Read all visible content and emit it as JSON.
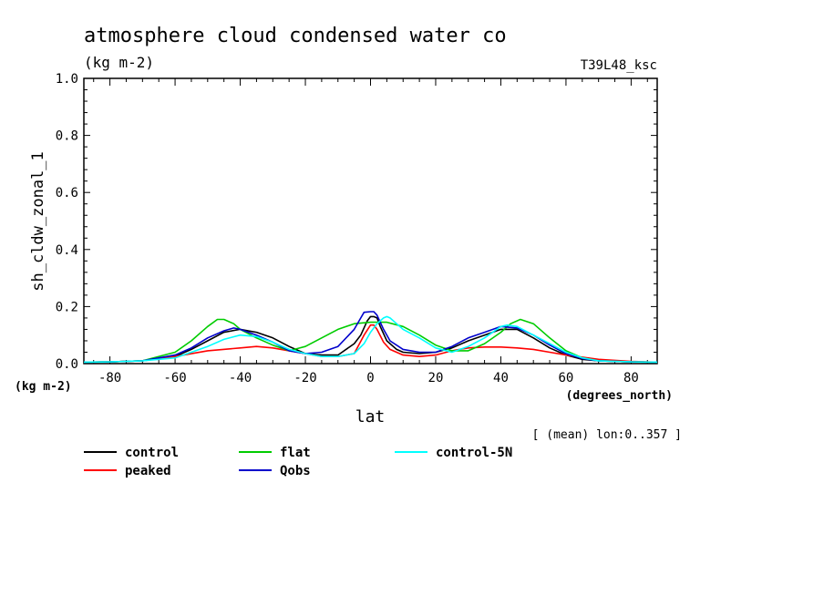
{
  "chart_data": {
    "type": "line",
    "title": "atmosphere cloud condensed water co",
    "subtitle": "(kg m-2)",
    "run_label": "T39L48_ksc",
    "ylabel": "sh_cldw_zonal_1",
    "yunits": "(kg m-2)",
    "xlabel": "lat",
    "xunits": "(degrees_north)",
    "note": "[ (mean) lon:0..357 ]",
    "xlim": [
      -88,
      88
    ],
    "ylim": [
      0,
      1
    ],
    "xticks": [
      -80,
      -60,
      -40,
      -20,
      0,
      20,
      40,
      60,
      80
    ],
    "yticks": [
      "0.0",
      "0.2",
      "0.4",
      "0.6",
      "0.8",
      "1.0"
    ],
    "legend_position": "bottom",
    "series": [
      {
        "name": "control",
        "color": "#000000",
        "x": [
          -88,
          -80,
          -70,
          -60,
          -55,
          -50,
          -45,
          -40,
          -35,
          -30,
          -25,
          -20,
          -15,
          -10,
          -5,
          -3,
          -1,
          0,
          1,
          2,
          3,
          5,
          8,
          10,
          15,
          20,
          25,
          30,
          35,
          40,
          45,
          50,
          55,
          60,
          65,
          70,
          80,
          88
        ],
        "y": [
          0.005,
          0.006,
          0.01,
          0.025,
          0.05,
          0.08,
          0.11,
          0.12,
          0.11,
          0.09,
          0.06,
          0.035,
          0.03,
          0.03,
          0.07,
          0.1,
          0.15,
          0.165,
          0.165,
          0.16,
          0.13,
          0.08,
          0.05,
          0.04,
          0.035,
          0.04,
          0.055,
          0.08,
          0.1,
          0.12,
          0.12,
          0.09,
          0.055,
          0.03,
          0.015,
          0.01,
          0.006,
          0.005
        ]
      },
      {
        "name": "peaked",
        "color": "#ff0000",
        "x": [
          -88,
          -80,
          -70,
          -60,
          -50,
          -40,
          -35,
          -30,
          -25,
          -20,
          -15,
          -10,
          -5,
          -2,
          0,
          1,
          2,
          4,
          6,
          10,
          15,
          20,
          25,
          30,
          35,
          40,
          45,
          50,
          55,
          60,
          70,
          80,
          88
        ],
        "y": [
          0.005,
          0.006,
          0.01,
          0.025,
          0.045,
          0.055,
          0.06,
          0.055,
          0.045,
          0.035,
          0.025,
          0.025,
          0.035,
          0.1,
          0.135,
          0.135,
          0.12,
          0.075,
          0.05,
          0.03,
          0.025,
          0.03,
          0.045,
          0.055,
          0.058,
          0.058,
          0.055,
          0.05,
          0.04,
          0.03,
          0.015,
          0.008,
          0.005
        ]
      },
      {
        "name": "flat",
        "color": "#00cc00",
        "x": [
          -88,
          -80,
          -70,
          -60,
          -55,
          -50,
          -47,
          -45,
          -42,
          -40,
          -35,
          -30,
          -25,
          -20,
          -15,
          -10,
          -5,
          0,
          3,
          5,
          10,
          15,
          20,
          25,
          30,
          35,
          40,
          43,
          46,
          50,
          55,
          60,
          65,
          70,
          80,
          88
        ],
        "y": [
          0.005,
          0.006,
          0.01,
          0.04,
          0.08,
          0.13,
          0.155,
          0.155,
          0.14,
          0.12,
          0.09,
          0.065,
          0.045,
          0.06,
          0.09,
          0.12,
          0.14,
          0.145,
          0.145,
          0.145,
          0.13,
          0.1,
          0.065,
          0.045,
          0.045,
          0.07,
          0.11,
          0.14,
          0.155,
          0.14,
          0.09,
          0.045,
          0.02,
          0.01,
          0.006,
          0.005
        ]
      },
      {
        "name": "Qobs",
        "color": "#0000cc",
        "x": [
          -88,
          -80,
          -70,
          -60,
          -55,
          -50,
          -45,
          -42,
          -40,
          -35,
          -30,
          -25,
          -20,
          -15,
          -10,
          -5,
          -3,
          -2,
          0,
          1,
          2,
          4,
          6,
          10,
          15,
          20,
          25,
          30,
          35,
          40,
          45,
          50,
          55,
          60,
          65,
          70,
          80,
          88
        ],
        "y": [
          0.005,
          0.006,
          0.01,
          0.03,
          0.055,
          0.09,
          0.115,
          0.125,
          0.12,
          0.1,
          0.075,
          0.045,
          0.035,
          0.04,
          0.06,
          0.12,
          0.16,
          0.18,
          0.182,
          0.182,
          0.17,
          0.12,
          0.08,
          0.05,
          0.04,
          0.04,
          0.06,
          0.09,
          0.11,
          0.13,
          0.125,
          0.1,
          0.065,
          0.035,
          0.018,
          0.01,
          0.006,
          0.005
        ]
      },
      {
        "name": "control-5N",
        "color": "#00ffff",
        "x": [
          -88,
          -80,
          -70,
          -60,
          -55,
          -50,
          -45,
          -40,
          -35,
          -30,
          -25,
          -20,
          -15,
          -10,
          -5,
          -2,
          0,
          2,
          4,
          5,
          6,
          8,
          10,
          15,
          20,
          25,
          30,
          35,
          40,
          42,
          45,
          50,
          55,
          60,
          65,
          70,
          80,
          88
        ],
        "y": [
          0.005,
          0.006,
          0.01,
          0.02,
          0.04,
          0.06,
          0.085,
          0.1,
          0.095,
          0.075,
          0.05,
          0.035,
          0.025,
          0.025,
          0.035,
          0.07,
          0.11,
          0.14,
          0.16,
          0.165,
          0.16,
          0.14,
          0.12,
          0.09,
          0.055,
          0.04,
          0.06,
          0.09,
          0.13,
          0.135,
          0.13,
          0.1,
          0.07,
          0.04,
          0.02,
          0.01,
          0.006,
          0.005
        ]
      }
    ]
  }
}
